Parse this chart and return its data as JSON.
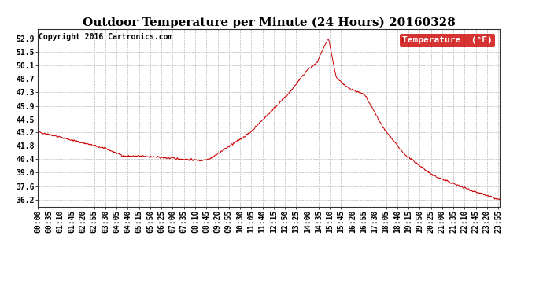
{
  "title": "Outdoor Temperature per Minute (24 Hours) 20160328",
  "copyright_text": "Copyright 2016 Cartronics.com",
  "legend_label": "Temperature  (°F)",
  "legend_bg": "#cc0000",
  "legend_fg": "#ffffff",
  "line_color": "#cc0000",
  "bg_color": "#ffffff",
  "grid_color": "#aaaaaa",
  "yticks": [
    36.2,
    37.6,
    39.0,
    40.4,
    41.8,
    43.2,
    44.5,
    45.9,
    47.3,
    48.7,
    50.1,
    51.5,
    52.9
  ],
  "ylim": [
    35.5,
    53.8
  ],
  "title_fontsize": 11,
  "copyright_fontsize": 7,
  "tick_fontsize": 7,
  "legend_fontsize": 8,
  "num_minutes": 1440,
  "xtick_step": 35
}
